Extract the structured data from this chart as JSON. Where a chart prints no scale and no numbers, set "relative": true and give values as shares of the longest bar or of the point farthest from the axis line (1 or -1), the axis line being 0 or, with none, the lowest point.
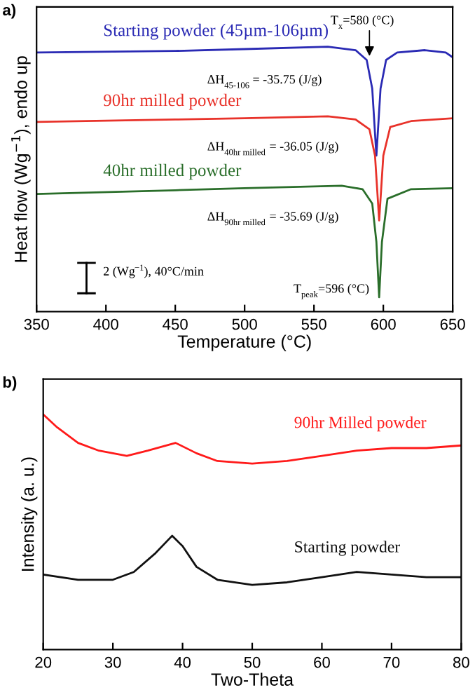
{
  "chart_data": [
    {
      "type": "line",
      "title": "a)",
      "xlabel": "Temperature (°C)",
      "ylabel": "Heat flow (Wg$^{−1}$), endo up",
      "relative": true,
      "xlim": [
        350,
        650
      ],
      "xticks": [
        350,
        400,
        450,
        500,
        550,
        600,
        650
      ],
      "grid": false,
      "legend": false,
      "marker": "none",
      "line_style": "solid",
      "series": [
        {
          "name": "Starting powder (45µm-106µm)",
          "color": "#2a2ab4",
          "x": [
            350,
            450,
            500,
            560,
            580,
            588,
            592,
            595,
            598,
            602,
            610,
            630,
            645,
            650
          ],
          "values": [
            0.978,
            0.984,
            0.991,
            1.0,
            0.987,
            0.95,
            0.842,
            0.589,
            0.842,
            0.95,
            0.978,
            0.987,
            0.978,
            0.96
          ]
        },
        {
          "name": "90hr milled powder",
          "color": "#e8322a",
          "x": [
            350,
            450,
            500,
            560,
            580,
            590,
            594,
            597,
            600,
            605,
            620,
            650
          ],
          "values": [
            0.716,
            0.725,
            0.73,
            0.737,
            0.725,
            0.688,
            0.589,
            0.344,
            0.589,
            0.697,
            0.719,
            0.73
          ]
        },
        {
          "name": "40hr milled powder",
          "color": "#2a6e2a",
          "x": [
            350,
            450,
            500,
            570,
            585,
            592,
            595,
            597,
            599,
            603,
            620,
            650
          ],
          "values": [
            0.444,
            0.458,
            0.466,
            0.475,
            0.462,
            0.408,
            0.263,
            0.054,
            0.263,
            0.426,
            0.462,
            0.466
          ]
        }
      ],
      "annotations": [
        {
          "text": "T$_{x}$=580 (°C)",
          "x": 590,
          "y": 0.95
        },
        "ΔH$_{45-106}$ = -35.75 (J/g)",
        "ΔH$_{40hr milled}$ = -36.05 (J/g)",
        "ΔH$_{90hr milled}$ = -35.69 (J/g)",
        {
          "text": "T$_{peak}$=596 (°C)",
          "x": 597,
          "y": 0.054
        },
        "2 (Wg$^{−1}$), 40°C/min"
      ]
    },
    {
      "type": "line",
      "title": "b)",
      "xlabel": "Two-Theta",
      "ylabel": "Intensity (a. u.)",
      "relative": true,
      "xlim": [
        20,
        80
      ],
      "xticks": [
        20,
        30,
        40,
        50,
        60,
        70,
        80
      ],
      "grid": false,
      "legend": false,
      "marker": "none",
      "line_style": "solid",
      "series": [
        {
          "name": "90hr Milled powder",
          "color": "#ff1a1a",
          "x": [
            20,
            22,
            25,
            28,
            32,
            35,
            39,
            42,
            45,
            50,
            55,
            60,
            65,
            70,
            75,
            80
          ],
          "values": [
            1.0,
            0.945,
            0.879,
            0.846,
            0.824,
            0.846,
            0.879,
            0.835,
            0.802,
            0.791,
            0.802,
            0.824,
            0.846,
            0.857,
            0.857,
            0.868
          ]
        },
        {
          "name": "Starting powder",
          "color": "#111111",
          "x": [
            20,
            25,
            30,
            33,
            36,
            38.5,
            40,
            42,
            45,
            50,
            55,
            60,
            65,
            70,
            75,
            80
          ],
          "values": [
            0.319,
            0.297,
            0.297,
            0.33,
            0.407,
            0.484,
            0.44,
            0.352,
            0.297,
            0.275,
            0.286,
            0.308,
            0.33,
            0.319,
            0.308,
            0.308
          ]
        }
      ]
    }
  ]
}
